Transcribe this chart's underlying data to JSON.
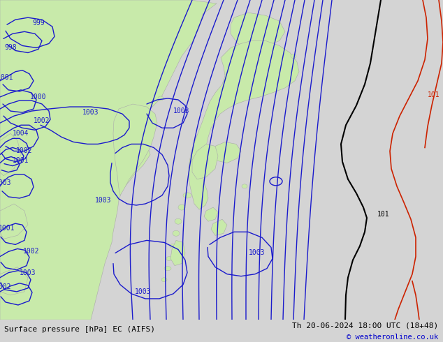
{
  "title_left": "Surface pressure [hPa] EC (AIFS)",
  "title_right": "Th 20-06-2024 18:00 UTC (18+48)",
  "copyright": "© weatheronline.co.uk",
  "bg_color": "#d4d4d4",
  "land_color": "#c8eaaa",
  "land_edge_color": "#aaaaaa",
  "ocean_color": "#d4d4d4",
  "isobar_color": "#1a1acc",
  "isobar_thick_color": "#000000",
  "isobar_red_color": "#cc2200",
  "text_color": "#000000",
  "bottom_bar_color": "#c8c8c8",
  "figsize": [
    6.34,
    4.9
  ],
  "dpi": 100
}
